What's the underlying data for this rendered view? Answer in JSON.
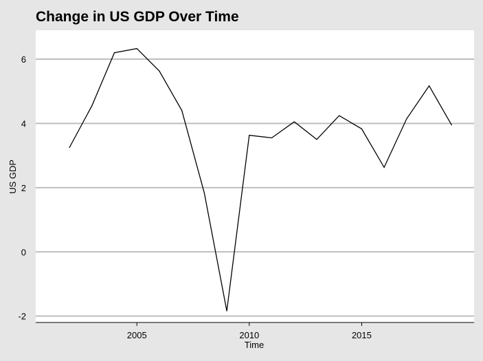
{
  "chart_data": {
    "type": "line",
    "title": "Change in US GDP Over Time",
    "xlabel": "Time",
    "ylabel": "US GDP",
    "xlim": [
      2000.5,
      2020.0
    ],
    "ylim": [
      -2.2,
      6.9
    ],
    "xticks": [
      2005,
      2010,
      2015
    ],
    "yticks": [
      -2,
      0,
      2,
      4,
      6
    ],
    "grid": "horizontal",
    "colors": {
      "background": "#e6e6e6",
      "panel": "#ffffff",
      "grid": "#bebebe",
      "line": "#000000"
    },
    "series": [
      {
        "x": [
          2002,
          2003,
          2004,
          2005,
          2006,
          2007,
          2008,
          2009,
          2010,
          2011,
          2012,
          2013,
          2014,
          2015,
          2016,
          2017,
          2018,
          2019
        ],
        "values": [
          3.25,
          4.55,
          6.2,
          6.33,
          5.63,
          4.4,
          1.83,
          -1.84,
          3.63,
          3.55,
          4.05,
          3.5,
          4.24,
          3.83,
          2.63,
          4.14,
          5.17,
          3.95
        ]
      }
    ]
  }
}
